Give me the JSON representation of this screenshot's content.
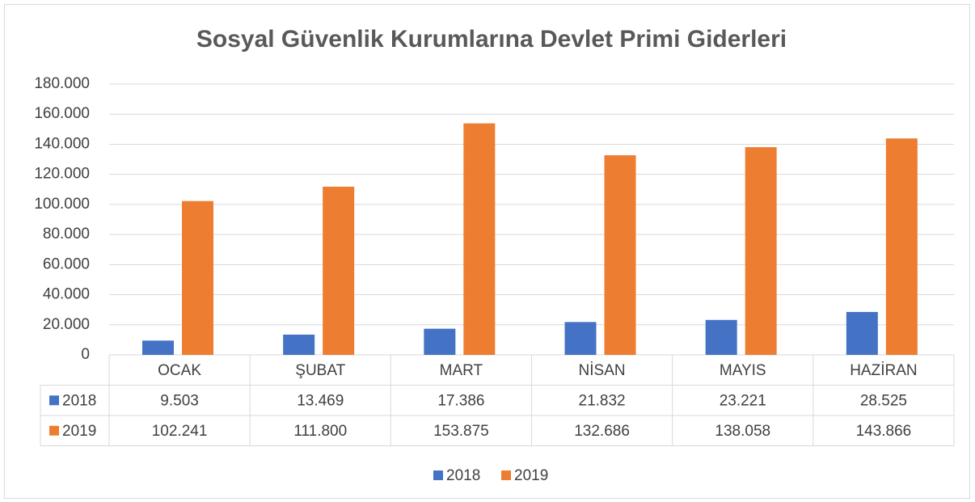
{
  "chart_data": {
    "type": "bar",
    "title": "Sosyal Güvenlik Kurumlarına Devlet Primi Giderleri",
    "categories": [
      "OCAK",
      "ŞUBAT",
      "MART",
      "NİSAN",
      "MAYIS",
      "HAZİRAN"
    ],
    "series": [
      {
        "name": "2018",
        "color": "#4472c4",
        "values": [
          9503,
          13469,
          17386,
          21832,
          23221,
          28525
        ],
        "value_labels": [
          "9.503",
          "13.469",
          "17.386",
          "21.832",
          "23.221",
          "28.525"
        ]
      },
      {
        "name": "2019",
        "color": "#ed7d31",
        "values": [
          102241,
          111800,
          153875,
          132686,
          138058,
          143866
        ],
        "value_labels": [
          "102.241",
          "111.800",
          "153.875",
          "132.686",
          "138.058",
          "143.866"
        ]
      }
    ],
    "ylim": [
      0,
      180000
    ],
    "yticks": [
      0,
      {
        "value": 20000,
        "label": "20.000"
      },
      {
        "value": 40000,
        "label": "40.000"
      },
      {
        "value": 60000,
        "label": "60.000"
      },
      {
        "value": 80000,
        "label": "80.000"
      },
      {
        "value": 100000,
        "label": "100.000"
      },
      {
        "value": 120000,
        "label": "120.000"
      },
      {
        "value": 140000,
        "label": "140.000"
      },
      {
        "value": 160000,
        "label": "160.000"
      },
      {
        "value": 180000,
        "label": "180.000"
      }
    ],
    "grid": true,
    "legend": "bottom"
  }
}
